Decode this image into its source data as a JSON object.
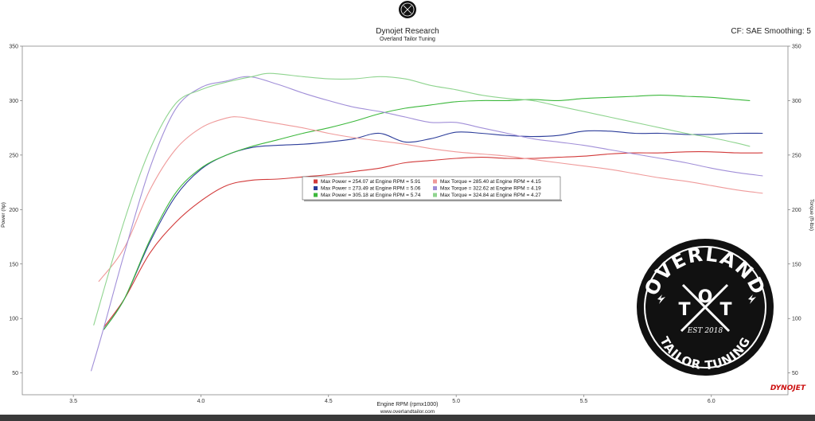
{
  "header": {
    "title": "Dynojet Research",
    "subtitle": "Overland Tailor Tuning",
    "cf_label": "CF: SAE Smoothing: 5"
  },
  "footer": {
    "website": "www.overlandtailor.com",
    "brand": "DYNOJET"
  },
  "badge": {
    "name": "OVERLAND",
    "letters_left": "T",
    "letters_center": "O",
    "letters_right": "T",
    "est": "EST 2018",
    "tagline": "TAILOR TUNING"
  },
  "chart_data": {
    "type": "line",
    "title": "Dynojet Research",
    "subtitle": "Overland Tailor Tuning",
    "xlabel": "Engine RPM (rpmx1000)",
    "ylabel": "Power (hp)",
    "y2label": "Torque (ft-lbs)",
    "xlim": [
      3.3,
      6.3
    ],
    "ylim": [
      30,
      350
    ],
    "x_ticks": [
      3.5,
      4.0,
      4.5,
      5.0,
      5.5,
      6.0
    ],
    "x_tick_labels": [
      "3.5",
      "4.0",
      "4.5",
      "5.0",
      "5.5",
      "6.0"
    ],
    "y_ticks": [
      50,
      100,
      150,
      200,
      250,
      300,
      350
    ],
    "y_tick_labels": [
      "50",
      "100",
      "150",
      "200",
      "250",
      "300",
      "350"
    ],
    "grid": false,
    "legend": {
      "placement": "center",
      "entries": [
        {
          "text": "Max Power = 254.07 at Engine RPM = 5.91",
          "color": "#d23a3a"
        },
        {
          "text": "Max Power = 273.49 at Engine RPM = 5.06",
          "color": "#2c3d9a"
        },
        {
          "text": "Max Power = 305.18 at Engine RPM = 5.74",
          "color": "#3cb83c"
        },
        {
          "text": "Max Torque = 285.40 at Engine RPM = 4.15",
          "color": "#ef9a9a"
        },
        {
          "text": "Max Torque = 322.62 at Engine RPM = 4.19",
          "color": "#a18fd8"
        },
        {
          "text": "Max Torque = 324.84 at Engine RPM = 4.27",
          "color": "#8fd48f"
        }
      ]
    },
    "series": [
      {
        "kind": "power",
        "color": "#d23a3a",
        "x": [
          3.62,
          3.7,
          3.8,
          3.9,
          4.0,
          4.1,
          4.2,
          4.3,
          4.4,
          4.5,
          4.6,
          4.7,
          4.8,
          4.9,
          5.0,
          5.1,
          5.2,
          5.3,
          5.4,
          5.5,
          5.6,
          5.7,
          5.8,
          5.9,
          6.0,
          6.1,
          6.2
        ],
        "y": [
          92,
          118,
          160,
          188,
          208,
          222,
          227,
          228,
          230,
          232,
          235,
          238,
          243,
          245,
          247,
          248,
          247,
          247,
          248,
          249,
          251,
          252,
          252,
          253,
          253,
          252,
          252
        ]
      },
      {
        "kind": "power",
        "color": "#2c3d9a",
        "x": [
          3.62,
          3.7,
          3.8,
          3.9,
          4.0,
          4.1,
          4.2,
          4.3,
          4.4,
          4.5,
          4.6,
          4.7,
          4.8,
          4.9,
          5.0,
          5.1,
          5.2,
          5.3,
          5.4,
          5.5,
          5.6,
          5.7,
          5.8,
          5.9,
          6.0,
          6.1,
          6.2
        ],
        "y": [
          90,
          118,
          170,
          212,
          237,
          250,
          257,
          259,
          260,
          262,
          265,
          270,
          262,
          265,
          271,
          270,
          268,
          267,
          268,
          272,
          272,
          270,
          270,
          269,
          269,
          270,
          270
        ]
      },
      {
        "kind": "power",
        "color": "#3cb83c",
        "x": [
          3.62,
          3.7,
          3.8,
          3.9,
          4.0,
          4.1,
          4.2,
          4.3,
          4.4,
          4.5,
          4.6,
          4.7,
          4.8,
          4.9,
          5.0,
          5.1,
          5.2,
          5.3,
          5.4,
          5.5,
          5.6,
          5.7,
          5.8,
          5.9,
          6.0,
          6.1,
          6.15
        ],
        "y": [
          90,
          118,
          172,
          215,
          238,
          250,
          258,
          264,
          270,
          275,
          281,
          288,
          293,
          296,
          299,
          300,
          300,
          301,
          300,
          302,
          303,
          304,
          305,
          304,
          303,
          301,
          300
        ]
      },
      {
        "kind": "torque",
        "color": "#ef9a9a",
        "x": [
          3.6,
          3.7,
          3.8,
          3.9,
          4.0,
          4.1,
          4.15,
          4.2,
          4.3,
          4.4,
          4.5,
          4.6,
          4.7,
          4.8,
          4.9,
          5.0,
          5.1,
          5.2,
          5.3,
          5.4,
          5.5,
          5.6,
          5.7,
          5.8,
          5.9,
          6.0,
          6.1,
          6.2
        ],
        "y": [
          134,
          165,
          218,
          255,
          275,
          284,
          285,
          283,
          279,
          275,
          270,
          266,
          263,
          260,
          256,
          253,
          251,
          249,
          246,
          243,
          240,
          237,
          233,
          229,
          226,
          222,
          218,
          215
        ]
      },
      {
        "kind": "torque",
        "color": "#a18fd8",
        "x": [
          3.57,
          3.62,
          3.7,
          3.8,
          3.9,
          4.0,
          4.1,
          4.19,
          4.3,
          4.4,
          4.5,
          4.6,
          4.7,
          4.8,
          4.9,
          5.0,
          5.1,
          5.2,
          5.3,
          5.4,
          5.5,
          5.6,
          5.7,
          5.8,
          5.9,
          6.0,
          6.1,
          6.2
        ],
        "y": [
          52,
          92,
          160,
          238,
          292,
          312,
          318,
          322,
          315,
          307,
          300,
          294,
          290,
          285,
          280,
          280,
          275,
          270,
          265,
          262,
          259,
          255,
          251,
          247,
          243,
          238,
          234,
          231
        ]
      },
      {
        "kind": "torque",
        "color": "#8fd48f",
        "x": [
          3.58,
          3.7,
          3.8,
          3.9,
          4.0,
          4.1,
          4.2,
          4.27,
          4.4,
          4.5,
          4.6,
          4.7,
          4.8,
          4.9,
          5.0,
          5.1,
          5.2,
          5.3,
          5.4,
          5.5,
          5.6,
          5.7,
          5.8,
          5.9,
          6.0,
          6.1,
          6.15
        ],
        "y": [
          94,
          190,
          255,
          297,
          310,
          317,
          322,
          325,
          322,
          320,
          320,
          322,
          320,
          314,
          310,
          305,
          302,
          300,
          295,
          290,
          285,
          280,
          275,
          270,
          266,
          261,
          258
        ]
      }
    ]
  },
  "colors": {
    "axis": "#555555",
    "badge_fill": "#111111",
    "badge_ink": "#ffffff",
    "brand_red": "#cc1111"
  }
}
